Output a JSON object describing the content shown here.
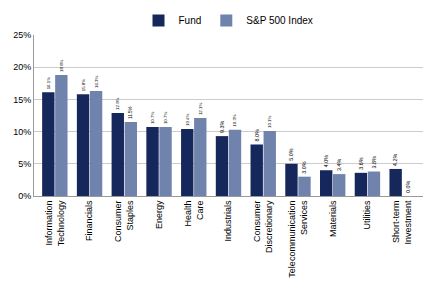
{
  "chart_data": {
    "type": "bar",
    "categories": [
      "Information Technology",
      "Financials",
      "Consumer Staples",
      "Energy",
      "Health Care",
      "Industrials",
      "Consumer Discretionary",
      "Telecommunication Services",
      "Materials",
      "Utilities",
      "Short-term Investment"
    ],
    "series": [
      {
        "name": "Fund",
        "color": "#16275c",
        "values": [
          16.1,
          15.8,
          12.9,
          10.7,
          10.4,
          9.3,
          8.0,
          5.0,
          4.0,
          3.6,
          4.2
        ],
        "value_labels": [
          "16.1%",
          "15.8%",
          "12.9%",
          "10.7%",
          "10.4%",
          "9.3%",
          "8.0%",
          "5.0%",
          "4.0%",
          "3.6%",
          "4.2%"
        ]
      },
      {
        "name": "S&P 500 Index",
        "color": "#7083ad",
        "values": [
          18.8,
          16.3,
          11.5,
          10.7,
          12.1,
          10.3,
          10.1,
          3.0,
          3.4,
          3.8,
          0.0
        ],
        "value_labels": [
          "18.8%",
          "16.3%",
          "11.5%",
          "10.7%",
          "12.1%",
          "10.3%",
          "10.1%",
          "3.0%",
          "3.4%",
          "3.8%",
          "0.0%"
        ]
      }
    ],
    "ylim": [
      0,
      25
    ],
    "yticks": [
      {
        "value": 0,
        "label": "0%"
      },
      {
        "value": 5,
        "label": "5%"
      },
      {
        "value": 10,
        "label": "10%"
      },
      {
        "value": 15,
        "label": "15%"
      },
      {
        "value": 20,
        "label": "20%"
      },
      {
        "value": 25,
        "label": "25%"
      }
    ],
    "grid": true,
    "legend": "top",
    "data_labels": true
  }
}
